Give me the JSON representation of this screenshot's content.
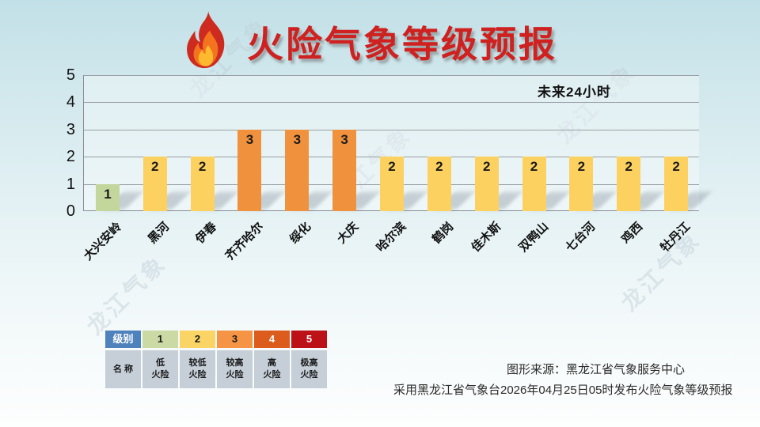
{
  "header": {
    "title": "火险气象等级预报"
  },
  "chart_data": {
    "type": "bar",
    "title": "火险气象等级预报",
    "subtitle": "未来24小时",
    "categories": [
      "大兴安岭",
      "黑河",
      "伊春",
      "齐齐哈尔",
      "绥化",
      "大庆",
      "哈尔滨",
      "鹤岗",
      "佳木斯",
      "双鸭山",
      "七台河",
      "鸡西",
      "牡丹江"
    ],
    "values": [
      1,
      2,
      2,
      3,
      3,
      3,
      2,
      2,
      2,
      2,
      2,
      2,
      2
    ],
    "ylim": [
      0,
      5
    ],
    "yticks": [
      0,
      1,
      2,
      3,
      4,
      5
    ],
    "grid": true,
    "legend_position": "bottom-left",
    "bar_colors_by_level": {
      "1": "#c3d69b",
      "2": "#fcd160",
      "3": "#f0913d",
      "4": "#dc5c1e",
      "5": "#bb1117"
    }
  },
  "legend": {
    "row1_header": "级别",
    "row2_header": "名 称",
    "header_color": "#4f81bd",
    "header_text_color": "#ffffff",
    "name_cell_color": "#c6ced8",
    "levels": [
      {
        "value": "1",
        "name": "低\n火险",
        "color": "#cbd9a4",
        "text_color": "#1a1a1a"
      },
      {
        "value": "2",
        "name": "较低\n火险",
        "color": "#fbd466",
        "text_color": "#1a1a1a"
      },
      {
        "value": "3",
        "name": "较高\n火险",
        "color": "#f69445",
        "text_color": "#1a1a1a"
      },
      {
        "value": "4",
        "name": "高\n火险",
        "color": "#dc5c1e",
        "text_color": "#ffffff"
      },
      {
        "value": "5",
        "name": "极高\n火险",
        "color": "#bb1117",
        "text_color": "#ffffff"
      }
    ]
  },
  "footer": {
    "source_line1": "图形来源：黑龙江省气象服务中心",
    "source_line2": "采用黑龙江省气象台2026年04月25日05时发布火险气象等级预报"
  },
  "watermark": {
    "text": "龙江气象"
  }
}
